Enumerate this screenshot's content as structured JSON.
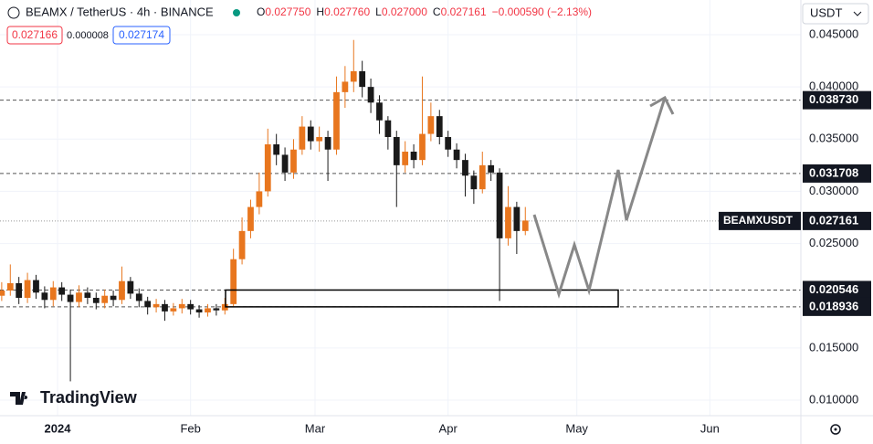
{
  "header": {
    "symbol": "BEAMX / TetherUS · 4h · BINANCE",
    "ohlc": [
      {
        "key": "O",
        "value": "0.027750"
      },
      {
        "key": "H",
        "value": "0.027760"
      },
      {
        "key": "L",
        "value": "0.027000"
      },
      {
        "key": "C",
        "value": "0.027161"
      }
    ],
    "change": "−0.000590 (−2.13%)",
    "bid": "0.027166",
    "spread": "0.000008",
    "ask": "0.027174",
    "currency": "USDT",
    "brand": "TradingView"
  },
  "chart_data": {
    "type": "candlestick",
    "x": [
      -13,
      -11,
      -9,
      -7,
      -5,
      -3,
      -1,
      1,
      3,
      5,
      7,
      9,
      11,
      13,
      15,
      17,
      19,
      21,
      23,
      25,
      27,
      29,
      31,
      33,
      35,
      37,
      39,
      41,
      43,
      45,
      47,
      49,
      51,
      53,
      55,
      57,
      59,
      61,
      63,
      65,
      67,
      69,
      71,
      73,
      75,
      77,
      79,
      81,
      83,
      85,
      87,
      89,
      91,
      93,
      95,
      97,
      99,
      101,
      103,
      105,
      107,
      109
    ],
    "open": [
      0.02,
      0.0205,
      0.0212,
      0.0198,
      0.0215,
      0.0203,
      0.0196,
      0.0208,
      0.0201,
      0.0194,
      0.0203,
      0.0198,
      0.0193,
      0.02,
      0.0196,
      0.0214,
      0.0202,
      0.0195,
      0.0189,
      0.0192,
      0.0185,
      0.0188,
      0.0192,
      0.0187,
      0.0184,
      0.0188,
      0.0186,
      0.0192,
      0.0235,
      0.0262,
      0.0285,
      0.03,
      0.0345,
      0.0335,
      0.0318,
      0.034,
      0.0362,
      0.0348,
      0.0352,
      0.034,
      0.0395,
      0.0405,
      0.0415,
      0.04,
      0.0385,
      0.0368,
      0.0352,
      0.0325,
      0.0338,
      0.033,
      0.0355,
      0.0372,
      0.0352,
      0.034,
      0.033,
      0.0315,
      0.0302,
      0.0325,
      0.0318,
      0.0255,
      0.0285,
      0.0262
    ],
    "high": [
      0.0213,
      0.023,
      0.0218,
      0.0222,
      0.022,
      0.0209,
      0.0214,
      0.0213,
      0.0206,
      0.021,
      0.0208,
      0.0203,
      0.0206,
      0.0205,
      0.0228,
      0.0218,
      0.0207,
      0.0199,
      0.0197,
      0.0196,
      0.0193,
      0.0197,
      0.0196,
      0.0191,
      0.0192,
      0.0192,
      0.0198,
      0.0245,
      0.0275,
      0.0292,
      0.0318,
      0.036,
      0.0355,
      0.0342,
      0.035,
      0.0372,
      0.0368,
      0.0362,
      0.0358,
      0.041,
      0.042,
      0.0445,
      0.0425,
      0.0408,
      0.0392,
      0.0372,
      0.0358,
      0.0348,
      0.0345,
      0.041,
      0.0385,
      0.0378,
      0.0358,
      0.0346,
      0.0336,
      0.032,
      0.0338,
      0.033,
      0.0322,
      0.0305,
      0.029,
      0.0285
    ],
    "low": [
      0.0195,
      0.02,
      0.0192,
      0.0193,
      0.0197,
      0.0188,
      0.019,
      0.0195,
      0.0118,
      0.0189,
      0.0192,
      0.0187,
      0.0188,
      0.019,
      0.0192,
      0.0197,
      0.0189,
      0.0182,
      0.0184,
      0.0176,
      0.0181,
      0.0183,
      0.0182,
      0.0179,
      0.018,
      0.0181,
      0.0182,
      0.019,
      0.023,
      0.0255,
      0.0278,
      0.0295,
      0.0325,
      0.031,
      0.0312,
      0.0335,
      0.034,
      0.0338,
      0.031,
      0.0335,
      0.038,
      0.0395,
      0.039,
      0.0375,
      0.0355,
      0.034,
      0.0285,
      0.0318,
      0.0322,
      0.0325,
      0.0348,
      0.0345,
      0.0333,
      0.0322,
      0.0295,
      0.0288,
      0.0298,
      0.031,
      0.0195,
      0.0248,
      0.024,
      0.0258
    ],
    "close": [
      0.0205,
      0.0212,
      0.0198,
      0.0215,
      0.0203,
      0.0196,
      0.0208,
      0.0201,
      0.0194,
      0.0203,
      0.0198,
      0.0193,
      0.02,
      0.0196,
      0.0214,
      0.0202,
      0.0195,
      0.0189,
      0.0192,
      0.0185,
      0.0188,
      0.0192,
      0.0187,
      0.0184,
      0.0188,
      0.0186,
      0.0192,
      0.0235,
      0.0262,
      0.0285,
      0.03,
      0.0345,
      0.0335,
      0.0318,
      0.034,
      0.0362,
      0.0348,
      0.0352,
      0.034,
      0.0395,
      0.0405,
      0.0415,
      0.04,
      0.0385,
      0.0368,
      0.0352,
      0.0325,
      0.0338,
      0.033,
      0.0355,
      0.0372,
      0.0352,
      0.034,
      0.033,
      0.0315,
      0.0302,
      0.0325,
      0.0318,
      0.0255,
      0.0285,
      0.0262,
      0.0272
    ],
    "up_color": "#e8761e",
    "down_color": "#1a1a1a",
    "xlim": [
      -13.4,
      173.2
    ],
    "xticks": [
      {
        "value": 0,
        "label": "2024"
      },
      {
        "value": 31,
        "label": "Feb"
      },
      {
        "value": 60,
        "label": "Mar"
      },
      {
        "value": 91,
        "label": "Apr"
      },
      {
        "value": 121,
        "label": "May"
      },
      {
        "value": 152,
        "label": "Jun"
      }
    ],
    "ylim": [
      0.0085125,
      0.048325
    ],
    "yticks": [
      {
        "value": 0.045,
        "label": "0.045000"
      },
      {
        "value": 0.04,
        "label": "0.040000"
      },
      {
        "value": 0.035,
        "label": "0.035000"
      },
      {
        "value": 0.03,
        "label": "0.030000"
      },
      {
        "value": 0.025,
        "label": "0.025000"
      },
      {
        "value": 0.015,
        "label": "0.015000"
      },
      {
        "value": 0.01,
        "label": "0.010000"
      }
    ],
    "grid": true,
    "levels": [
      {
        "value": 0.03873,
        "label": "0.038730"
      },
      {
        "value": 0.031708,
        "label": "0.031708"
      },
      {
        "value": 0.020546,
        "label": "0.020546"
      },
      {
        "value": 0.018936,
        "label": "0.018936"
      }
    ],
    "last_price": {
      "name": "BEAMXUSDT",
      "value": 0.027161,
      "label": "0.027161"
    }
  }
}
